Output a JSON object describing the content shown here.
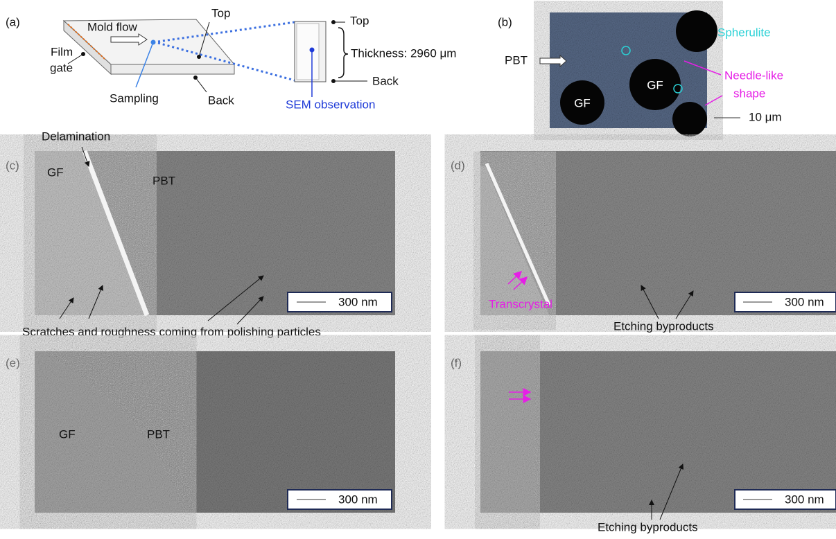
{
  "panel_a": {
    "label": "(a)",
    "mold_flow": "Mold flow",
    "top_plate": "Top",
    "film_gate": [
      "Film",
      "gate"
    ],
    "sampling": "Sampling",
    "back_plate": "Back",
    "top_section": "Top",
    "thickness": "Thickness: 2960 μm",
    "back_section": "Back",
    "sem_observation": "SEM observation"
  },
  "panel_b": {
    "label": "(b)",
    "pbt": "PBT",
    "gf_1": "GF",
    "gf_2": "GF",
    "spherulite": "Spherulite",
    "needle_like": [
      "Needle-like",
      "shape"
    ],
    "scale": "10 μm"
  },
  "panel_c": {
    "label": "(c)",
    "delamination": "Delamination",
    "gf": "GF",
    "pbt": "PBT",
    "scale": "300 nm",
    "caption": "Scratches and roughness coming from polishing particles"
  },
  "panel_d": {
    "label": "(d)",
    "transcrystal": "Transcrystal",
    "scale": "300 nm",
    "caption": "Etching byproducts"
  },
  "panel_e": {
    "label": "(e)",
    "gf": "GF",
    "pbt": "PBT",
    "scale": "300 nm"
  },
  "panel_f": {
    "label": "(f)",
    "scale": "300 nm",
    "caption": "Etching byproducts"
  }
}
